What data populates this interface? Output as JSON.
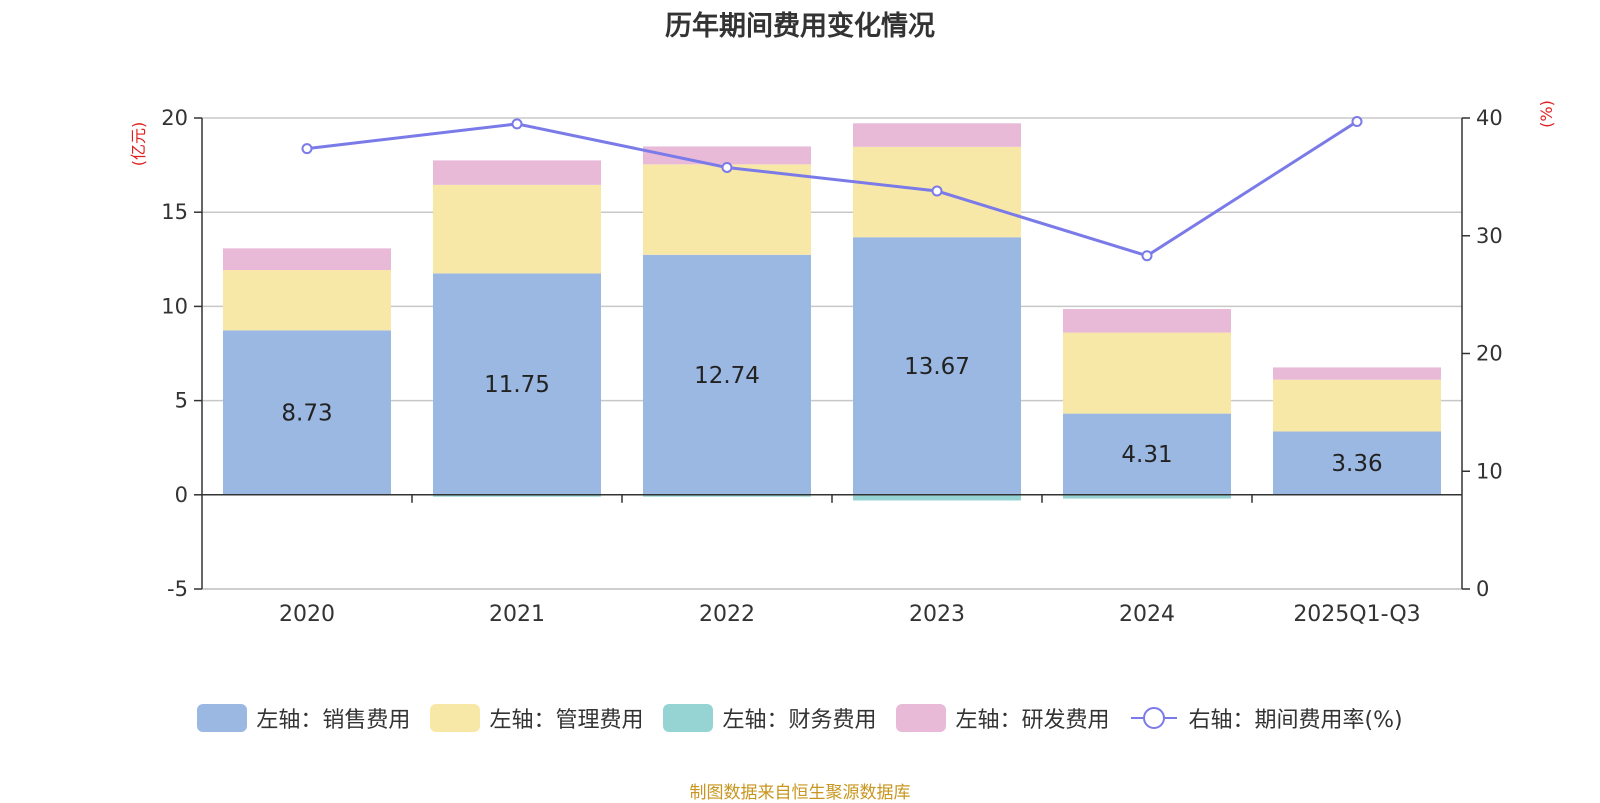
{
  "chart_data": {
    "type": "bar",
    "title": "历年期间费用变化情况",
    "categories": [
      "2020",
      "2021",
      "2022",
      "2023",
      "2024",
      "2025Q1-Q3"
    ],
    "left_axis": {
      "label": "(亿元)",
      "min": -5,
      "max": 20,
      "ticks": [
        -5,
        0,
        5,
        10,
        15,
        20
      ]
    },
    "right_axis": {
      "label": "(%)",
      "min": 0,
      "max": 40,
      "ticks": [
        0,
        10,
        20,
        30,
        40
      ]
    },
    "series": [
      {
        "name": "左轴：销售费用",
        "axis": "left",
        "type": "bar",
        "color": "#9bb8e2",
        "values": [
          8.73,
          11.75,
          12.74,
          13.67,
          4.31,
          3.36
        ],
        "labels": [
          "8.73",
          "11.75",
          "12.74",
          "13.67",
          "4.31",
          "3.36"
        ]
      },
      {
        "name": "左轴：管理费用",
        "axis": "left",
        "type": "bar",
        "color": "#f8e8a8",
        "values": [
          3.2,
          4.7,
          4.8,
          4.8,
          4.3,
          2.75
        ]
      },
      {
        "name": "左轴：财务费用",
        "axis": "left",
        "type": "bar",
        "color": "#96d4d4",
        "values": [
          0.0,
          -0.1,
          -0.1,
          -0.3,
          -0.2,
          0.0
        ]
      },
      {
        "name": "左轴：研发费用",
        "axis": "left",
        "type": "bar",
        "color": "#e8bad8",
        "values": [
          1.15,
          1.3,
          0.95,
          1.25,
          1.25,
          0.65
        ]
      },
      {
        "name": "右轴：期间费用率(%)",
        "axis": "right",
        "type": "line",
        "color": "#7a7ae8",
        "values": [
          37.4,
          39.5,
          35.8,
          33.8,
          28.3,
          39.7
        ]
      }
    ],
    "legend_position": "bottom",
    "grid": true
  },
  "source_note": "制图数据来自恒生聚源数据库"
}
